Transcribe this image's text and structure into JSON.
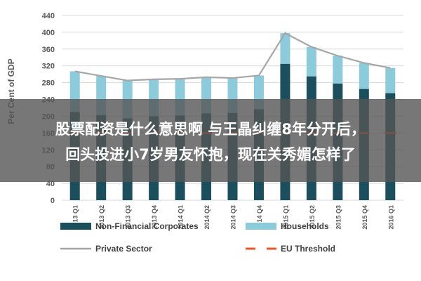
{
  "chart_data": {
    "type": "bar",
    "stacked": true,
    "ylabel": "Per Cent of GDP",
    "ylim": [
      0,
      440
    ],
    "yticks": [
      0,
      40,
      80,
      120,
      160,
      200,
      240,
      280,
      320,
      360,
      400,
      440
    ],
    "grid": true,
    "legend_position": "bottom",
    "categories": [
      "2013 Q1",
      "2013 Q2",
      "2013 Q3",
      "2013 Q4",
      "2014 Q1",
      "2014 Q2",
      "2014 Q3",
      "2014 Q4",
      "2015 Q1",
      "2015 Q2",
      "2015 Q3",
      "2015 Q4",
      "2016 Q1"
    ],
    "series": [
      {
        "name": "Non-Financial Corporates",
        "type": "bar",
        "color": "#1b4f5e",
        "values": [
          210,
          203,
          195,
          200,
          202,
          207,
          208,
          217,
          325,
          295,
          278,
          265,
          255
        ]
      },
      {
        "name": "Households",
        "type": "bar",
        "color": "#8ccbdc",
        "values": [
          97,
          93,
          90,
          88,
          87,
          86,
          83,
          80,
          73,
          70,
          66,
          62,
          60
        ]
      },
      {
        "name": "Private Sector",
        "type": "line",
        "color": "#a6a6a6",
        "values": [
          307,
          296,
          285,
          288,
          289,
          293,
          291,
          297,
          398,
          365,
          344,
          327,
          315
        ]
      },
      {
        "name": "EU Threshold",
        "type": "dashed-line",
        "color": "#e8562a",
        "values": [
          160,
          160,
          160,
          160,
          160,
          160,
          160,
          160,
          160,
          160,
          160,
          160,
          160
        ]
      }
    ]
  },
  "overlay": {
    "line1": "股票配资是什么意思啊 与王晶纠缠8年分开后，",
    "line2": "回头投进小7岁男友怀抱，现在关秀媚怎样了"
  }
}
